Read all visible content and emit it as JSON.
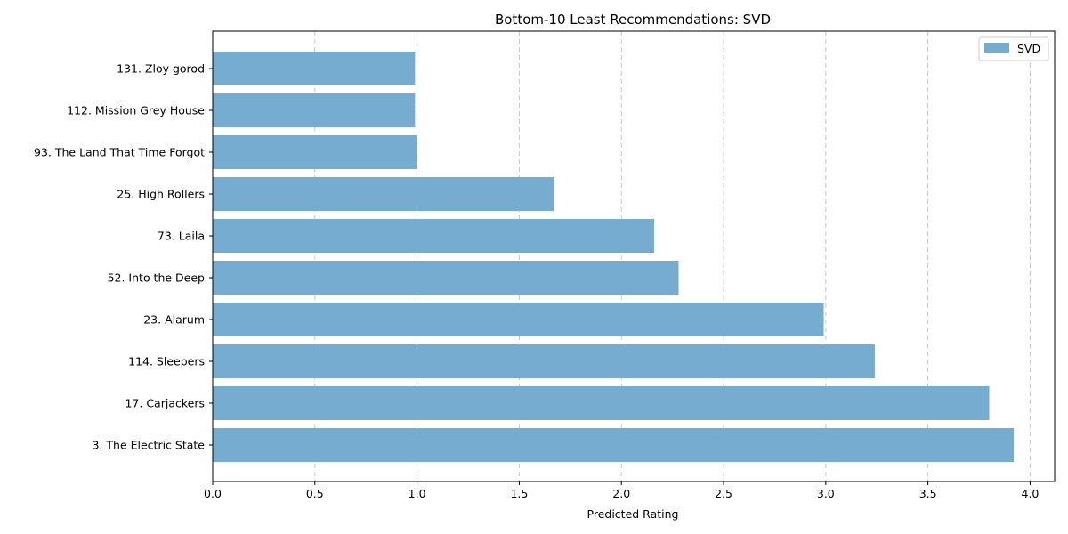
{
  "chart_data": {
    "type": "bar",
    "orientation": "horizontal",
    "title": "Bottom-10 Least Recommendations: SVD",
    "xlabel": "Predicted Rating",
    "ylabel": "",
    "categories": [
      "3. The Electric State",
      "17. Carjackers",
      "114. Sleepers",
      "23. Alarum",
      "52. Into the Deep",
      "73. Laila",
      "25. High Rollers",
      "93. The Land That Time Forgot",
      "112. Mission Grey House",
      "131. Zloy gorod"
    ],
    "series": [
      {
        "name": "SVD",
        "values": [
          3.92,
          3.8,
          3.24,
          2.99,
          2.28,
          2.16,
          1.67,
          1.0,
          0.99,
          0.99
        ]
      }
    ],
    "xlim": [
      0,
      4.12
    ],
    "xticks": [
      "0.0",
      "0.5",
      "1.0",
      "1.5",
      "2.0",
      "2.5",
      "3.0",
      "3.5",
      "4.0"
    ],
    "grid": "vertical dashed",
    "legend_position": "top-right",
    "colors": {
      "bar": "#77acd1",
      "grid": "#c8c8c8",
      "axis": "#000000"
    }
  }
}
